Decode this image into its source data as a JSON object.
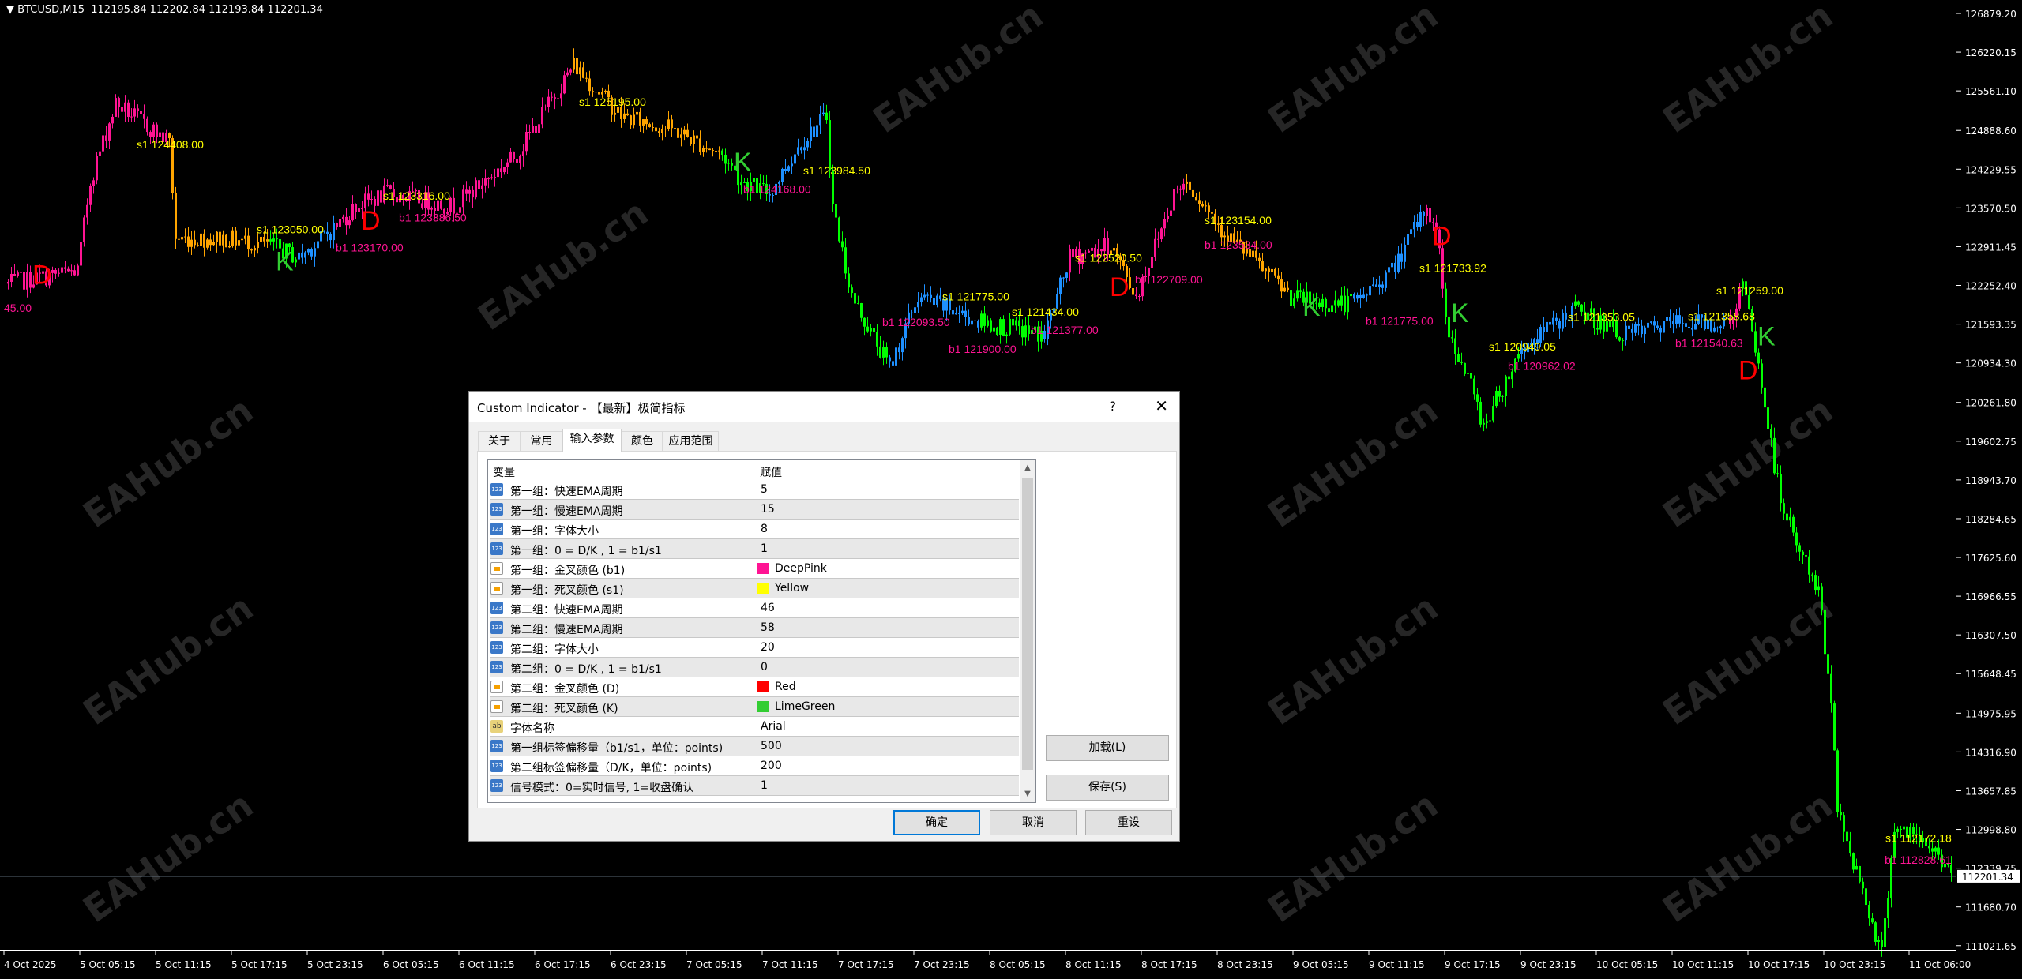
{
  "chart": {
    "symbol_label": "BTCUSD,M15",
    "ohlc": "112195.84 112202.84 112193.84 112201.34",
    "current_price": "112201.34",
    "colors": {
      "pink": "#FF1493",
      "orange": "#FFA500",
      "green": "#00FF00",
      "blue": "#1E90FF",
      "red": "#FF0000",
      "lime_label": "#32CD32",
      "yellow": "#FFFF00"
    },
    "watermark": "EAHub.cn",
    "price_ticks": [
      "126879.20",
      "126220.15",
      "125561.10",
      "124888.60",
      "124229.55",
      "123570.50",
      "122911.45",
      "122252.40",
      "121593.35",
      "120934.30",
      "120261.80",
      "119602.75",
      "118943.70",
      "118284.65",
      "117625.60",
      "116966.55",
      "116307.50",
      "115648.45",
      "114975.95",
      "114316.90",
      "113657.85",
      "112998.80",
      "112339.75",
      "111680.70",
      "111021.65"
    ],
    "time_ticks": [
      "4 Oct 2025",
      "5 Oct 05:15",
      "5 Oct 11:15",
      "5 Oct 17:15",
      "5 Oct 23:15",
      "6 Oct 05:15",
      "6 Oct 11:15",
      "6 Oct 17:15",
      "6 Oct 23:15",
      "7 Oct 05:15",
      "7 Oct 11:15",
      "7 Oct 17:15",
      "7 Oct 23:15",
      "8 Oct 05:15",
      "8 Oct 11:15",
      "8 Oct 17:15",
      "8 Oct 23:15",
      "9 Oct 05:15",
      "9 Oct 11:15",
      "9 Oct 17:15",
      "9 Oct 23:15",
      "10 Oct 05:15",
      "10 Oct 11:15",
      "10 Oct 17:15",
      "10 Oct 23:15",
      "11 Oct 06:00"
    ],
    "price_path": [
      {
        "t": "4 Oct 23:30",
        "p": 122282,
        "c": "blue"
      },
      {
        "t": "5 Oct 05:00",
        "p": 122502,
        "c": "pink"
      },
      {
        "t": "5 Oct 06:00",
        "p": 124037,
        "c": "pink"
      },
      {
        "t": "5 Oct 08:00",
        "p": 125353,
        "c": "pink"
      },
      {
        "t": "5 Oct 12:15",
        "p": 124695,
        "c": "pink"
      },
      {
        "t": "5 Oct 12:45",
        "p": 123050,
        "c": "orange"
      },
      {
        "t": "5 Oct 16:45",
        "p": 123050,
        "c": "orange"
      },
      {
        "t": "5 Oct 20:15",
        "p": 122940,
        "c": "orange"
      },
      {
        "t": "5 Oct 22:30",
        "p": 122721,
        "c": "green"
      },
      {
        "t": "6 Oct 01:30",
        "p": 123269,
        "c": "blue"
      },
      {
        "t": "6 Oct 03:00",
        "p": 123598,
        "c": "pink"
      },
      {
        "t": "6 Oct 05:30",
        "p": 123818,
        "c": "pink"
      },
      {
        "t": "6 Oct 10:45",
        "p": 123598,
        "c": "pink"
      },
      {
        "t": "6 Oct 15:45",
        "p": 124475,
        "c": "pink"
      },
      {
        "t": "6 Oct 20:15",
        "p": 126010,
        "c": "pink"
      },
      {
        "t": "7 Oct 00:00",
        "p": 125133,
        "c": "orange"
      },
      {
        "t": "7 Oct 04:00",
        "p": 124914,
        "c": "orange"
      },
      {
        "t": "7 Oct 08:00",
        "p": 124475,
        "c": "orange"
      },
      {
        "t": "7 Oct 09:30",
        "p": 124037,
        "c": "green"
      },
      {
        "t": "7 Oct 11:45",
        "p": 123818,
        "c": "green"
      },
      {
        "t": "7 Oct 14:15",
        "p": 124695,
        "c": "blue"
      },
      {
        "t": "7 Oct 16:15",
        "p": 125133,
        "c": "blue"
      },
      {
        "t": "7 Oct 16:45",
        "p": 123598,
        "c": "green"
      },
      {
        "t": "7 Oct 18:15",
        "p": 122063,
        "c": "green"
      },
      {
        "t": "7 Oct 21:15",
        "p": 120857,
        "c": "green"
      },
      {
        "t": "7 Oct 23:30",
        "p": 122063,
        "c": "blue"
      },
      {
        "t": "8 Oct 04:30",
        "p": 121625,
        "c": "blue"
      },
      {
        "t": "8 Oct 09:30",
        "p": 121405,
        "c": "green"
      },
      {
        "t": "8 Oct 11:30",
        "p": 122721,
        "c": "blue"
      },
      {
        "t": "8 Oct 14:45",
        "p": 122940,
        "c": "pink"
      },
      {
        "t": "8 Oct 16:45",
        "p": 122063,
        "c": "orange"
      },
      {
        "t": "8 Oct 19:45",
        "p": 123818,
        "c": "pink"
      },
      {
        "t": "8 Oct 20:45",
        "p": 124037,
        "c": "pink"
      },
      {
        "t": "8 Oct 23:45",
        "p": 123160,
        "c": "orange"
      },
      {
        "t": "9 Oct 05:00",
        "p": 122063,
        "c": "orange"
      },
      {
        "t": "9 Oct 07:00",
        "p": 121953,
        "c": "green"
      },
      {
        "t": "9 Oct 10:00",
        "p": 121953,
        "c": "green"
      },
      {
        "t": "9 Oct 13:00",
        "p": 122502,
        "c": "blue"
      },
      {
        "t": "9 Oct 15:45",
        "p": 123598,
        "c": "blue"
      },
      {
        "t": "9 Oct 16:45",
        "p": 122940,
        "c": "pink"
      },
      {
        "t": "9 Oct 17:15",
        "p": 121625,
        "c": "pink"
      },
      {
        "t": "9 Oct 19:15",
        "p": 120528,
        "c": "green"
      },
      {
        "t": "9 Oct 20:15",
        "p": 119870,
        "c": "green"
      },
      {
        "t": "9 Oct 23:15",
        "p": 121186,
        "c": "green"
      },
      {
        "t": "10 Oct 03:30",
        "p": 121844,
        "c": "blue"
      },
      {
        "t": "10 Oct 07:30",
        "p": 121405,
        "c": "green"
      },
      {
        "t": "10 Oct 11:30",
        "p": 121625,
        "c": "blue"
      },
      {
        "t": "10 Oct 15:45",
        "p": 121625,
        "c": "blue"
      },
      {
        "t": "10 Oct 16:45",
        "p": 122282,
        "c": "pink"
      },
      {
        "t": "10 Oct 17:45",
        "p": 121186,
        "c": "green"
      },
      {
        "t": "10 Oct 19:45",
        "p": 118555,
        "c": "green"
      },
      {
        "t": "10 Oct 22:45",
        "p": 117020,
        "c": "green"
      },
      {
        "t": "10 Oct 23:45",
        "p": 115265,
        "c": "green"
      },
      {
        "t": "11 Oct 00:15",
        "p": 113291,
        "c": "green"
      },
      {
        "t": "11 Oct 02:15",
        "p": 111975,
        "c": "green"
      },
      {
        "t": "11 Oct 03:45",
        "p": 110879,
        "c": "green"
      },
      {
        "t": "11 Oct 04:45",
        "p": 113072,
        "c": "green"
      },
      {
        "t": "11 Oct 08:00",
        "p": 112633,
        "c": "green"
      },
      {
        "t": "11 Oct 09:30",
        "p": 112201,
        "c": "green"
      }
    ],
    "labels": [
      {
        "t": "4 Oct 23:15",
        "p": 121800,
        "text": "45.00",
        "c": "pink",
        "big": false
      },
      {
        "t": "5 Oct 01:30",
        "p": 122063,
        "text": "D",
        "c": "red",
        "big": true
      },
      {
        "t": "5 Oct 09:45",
        "p": 124585,
        "text": "s1 124408.00",
        "c": "yellow",
        "big": false
      },
      {
        "t": "5 Oct 19:15",
        "p": 123138,
        "text": "s1 123050.00",
        "c": "yellow",
        "big": false
      },
      {
        "t": "5 Oct 20:45",
        "p": 122940,
        "text": "K",
        "c": "lime_label",
        "big": true
      },
      {
        "t": "6 Oct 01:30",
        "p": 122830,
        "text": "b1 123170.00",
        "c": "pink",
        "big": false
      },
      {
        "t": "6 Oct 03:30",
        "p": 123200,
        "text": "D",
        "c": "red",
        "big": true
      },
      {
        "t": "6 Oct 05:15",
        "p": 123708,
        "text": "s1 123316.00",
        "c": "yellow",
        "big": false
      },
      {
        "t": "6 Oct 06:30",
        "p": 123555,
        "text": "b1 123386.50",
        "c": "pink",
        "big": false
      },
      {
        "t": "6 Oct 20:45",
        "p": 125309,
        "text": "s1 125195.00",
        "c": "yellow",
        "big": false
      },
      {
        "t": "7 Oct 09:00",
        "p": 124190,
        "text": "K",
        "c": "lime_label",
        "big": true
      },
      {
        "t": "7 Oct 09:45",
        "p": 124037,
        "text": "b1 124168.00",
        "c": "pink",
        "big": false
      },
      {
        "t": "7 Oct 14:30",
        "p": 123927,
        "text": "s1 123984.50",
        "c": "yellow",
        "big": false
      },
      {
        "t": "7 Oct 20:45",
        "p": 121560,
        "text": "b1 122093.50",
        "c": "pink",
        "big": false
      },
      {
        "t": "8 Oct 01:30",
        "p": 121997,
        "text": "s1 121775.00",
        "c": "yellow",
        "big": false
      },
      {
        "t": "8 Oct 02:00",
        "p": 121537,
        "text": "b1 121900.00",
        "c": "pink",
        "big": false
      },
      {
        "t": "8 Oct 07:00",
        "p": 121734,
        "text": "s1 121434.00",
        "c": "yellow",
        "big": false
      },
      {
        "t": "8 Oct 08:30",
        "p": 121427,
        "text": "b1 121377.00",
        "c": "pink",
        "big": false
      },
      {
        "t": "8 Oct 12:00",
        "p": 122655,
        "text": "s1 122520.50",
        "c": "yellow",
        "big": false
      },
      {
        "t": "8 Oct 14:45",
        "p": 122502,
        "text": "D",
        "c": "red",
        "big": true
      },
      {
        "t": "8 Oct 16:45",
        "p": 122502,
        "text": "b1 122709.00",
        "c": "pink",
        "big": false
      },
      {
        "t": "8 Oct 22:15",
        "p": 123291,
        "text": "s1 123154.00",
        "c": "yellow",
        "big": false
      },
      {
        "t": "8 Oct 22:15",
        "p": 123094,
        "text": "b1 123534.00",
        "c": "pink",
        "big": false
      },
      {
        "t": "9 Oct 06:00",
        "p": 121734,
        "text": "K",
        "c": "lime_label",
        "big": true
      },
      {
        "t": "9 Oct 11:00",
        "p": 121581,
        "text": "b1 121775.00",
        "c": "pink",
        "big": false
      },
      {
        "t": "9 Oct 15:15",
        "p": 122480,
        "text": "s1 121733.92",
        "c": "yellow",
        "big": false
      },
      {
        "t": "9 Oct 16:15",
        "p": 122940,
        "text": "D",
        "c": "red",
        "big": true
      },
      {
        "t": "9 Oct 17:45",
        "p": 121625,
        "text": "K",
        "c": "lime_label",
        "big": true
      },
      {
        "t": "9 Oct 20:45",
        "p": 121142,
        "text": "s1 120949.05",
        "c": "yellow",
        "big": false
      },
      {
        "t": "9 Oct 22:15",
        "p": 120813,
        "text": "b1 120962.02",
        "c": "pink",
        "big": false
      },
      {
        "t": "10 Oct 03:00",
        "p": 121647,
        "text": "s1 121353.05",
        "c": "yellow",
        "big": false
      },
      {
        "t": "10 Oct 11:30",
        "p": 121208,
        "text": "b1 121540.63",
        "c": "pink",
        "big": false
      },
      {
        "t": "10 Oct 12:30",
        "p": 121449,
        "text": "s1 121358.68",
        "c": "yellow",
        "big": false
      },
      {
        "t": "10 Oct 14:45",
        "p": 121668,
        "text": "s1 121259.00",
        "c": "yellow",
        "big": false
      },
      {
        "t": "10 Oct 16:30",
        "p": 121515,
        "text": "D",
        "c": "red",
        "big": true
      },
      {
        "t": "10 Oct 18:00",
        "p": 121230,
        "text": "K",
        "c": "lime_label",
        "big": true
      },
      {
        "t": "11 Oct 05:00",
        "p": 112787,
        "text": "s1 112172.18",
        "c": "yellow",
        "big": false
      },
      {
        "t": "11 Oct 07:00",
        "p": 112633,
        "text": "b1 112828.61",
        "c": "pink",
        "big": false
      }
    ]
  },
  "dialog": {
    "title": "Custom Indicator - 【最新】极简指标",
    "help": "?",
    "close": "✕",
    "tabs": [
      "关于",
      "常用",
      "输入参数",
      "颜色",
      "应用范围"
    ],
    "active_tab": "输入参数",
    "table": {
      "col_variable": "变量",
      "col_value": "赋值",
      "rows": [
        {
          "icon": "num",
          "name": "第一组：快速EMA周期",
          "value": "5"
        },
        {
          "icon": "num",
          "name": "第一组：慢速EMA周期",
          "value": "15"
        },
        {
          "icon": "num",
          "name": "第一组：字体大小",
          "value": "8"
        },
        {
          "icon": "num",
          "name": "第一组：0 = D/K , 1 = b1/s1",
          "value": "1"
        },
        {
          "icon": "col",
          "name": "第一组：金叉颜色 (b1)",
          "value": "DeepPink",
          "swatch": "#FF1493"
        },
        {
          "icon": "col",
          "name": "第一组：死叉颜色 (s1)",
          "value": "Yellow",
          "swatch": "#FFFF00"
        },
        {
          "icon": "num",
          "name": "第二组：快速EMA周期",
          "value": "46"
        },
        {
          "icon": "num",
          "name": "第二组：慢速EMA周期",
          "value": "58"
        },
        {
          "icon": "num",
          "name": "第二组：字体大小",
          "value": "20"
        },
        {
          "icon": "num",
          "name": "第二组：0 = D/K , 1 = b1/s1",
          "value": "0"
        },
        {
          "icon": "col",
          "name": "第二组：金叉颜色 (D)",
          "value": "Red",
          "swatch": "#FF0000"
        },
        {
          "icon": "col",
          "name": "第二组：死叉颜色 (K)",
          "value": "LimeGreen",
          "swatch": "#32CD32"
        },
        {
          "icon": "txt",
          "name": "字体名称",
          "value": "Arial"
        },
        {
          "icon": "num",
          "name": "第一组标签偏移量（b1/s1，单位：points)",
          "value": "500"
        },
        {
          "icon": "num",
          "name": "第二组标签偏移量（D/K，单位：points)",
          "value": "200"
        },
        {
          "icon": "num",
          "name": "信号模式：0=实时信号, 1=收盘确认",
          "value": "1"
        }
      ]
    },
    "buttons": {
      "load": "加载(L)",
      "save": "保存(S)",
      "ok": "确定",
      "cancel": "取消",
      "reset": "重设"
    }
  }
}
